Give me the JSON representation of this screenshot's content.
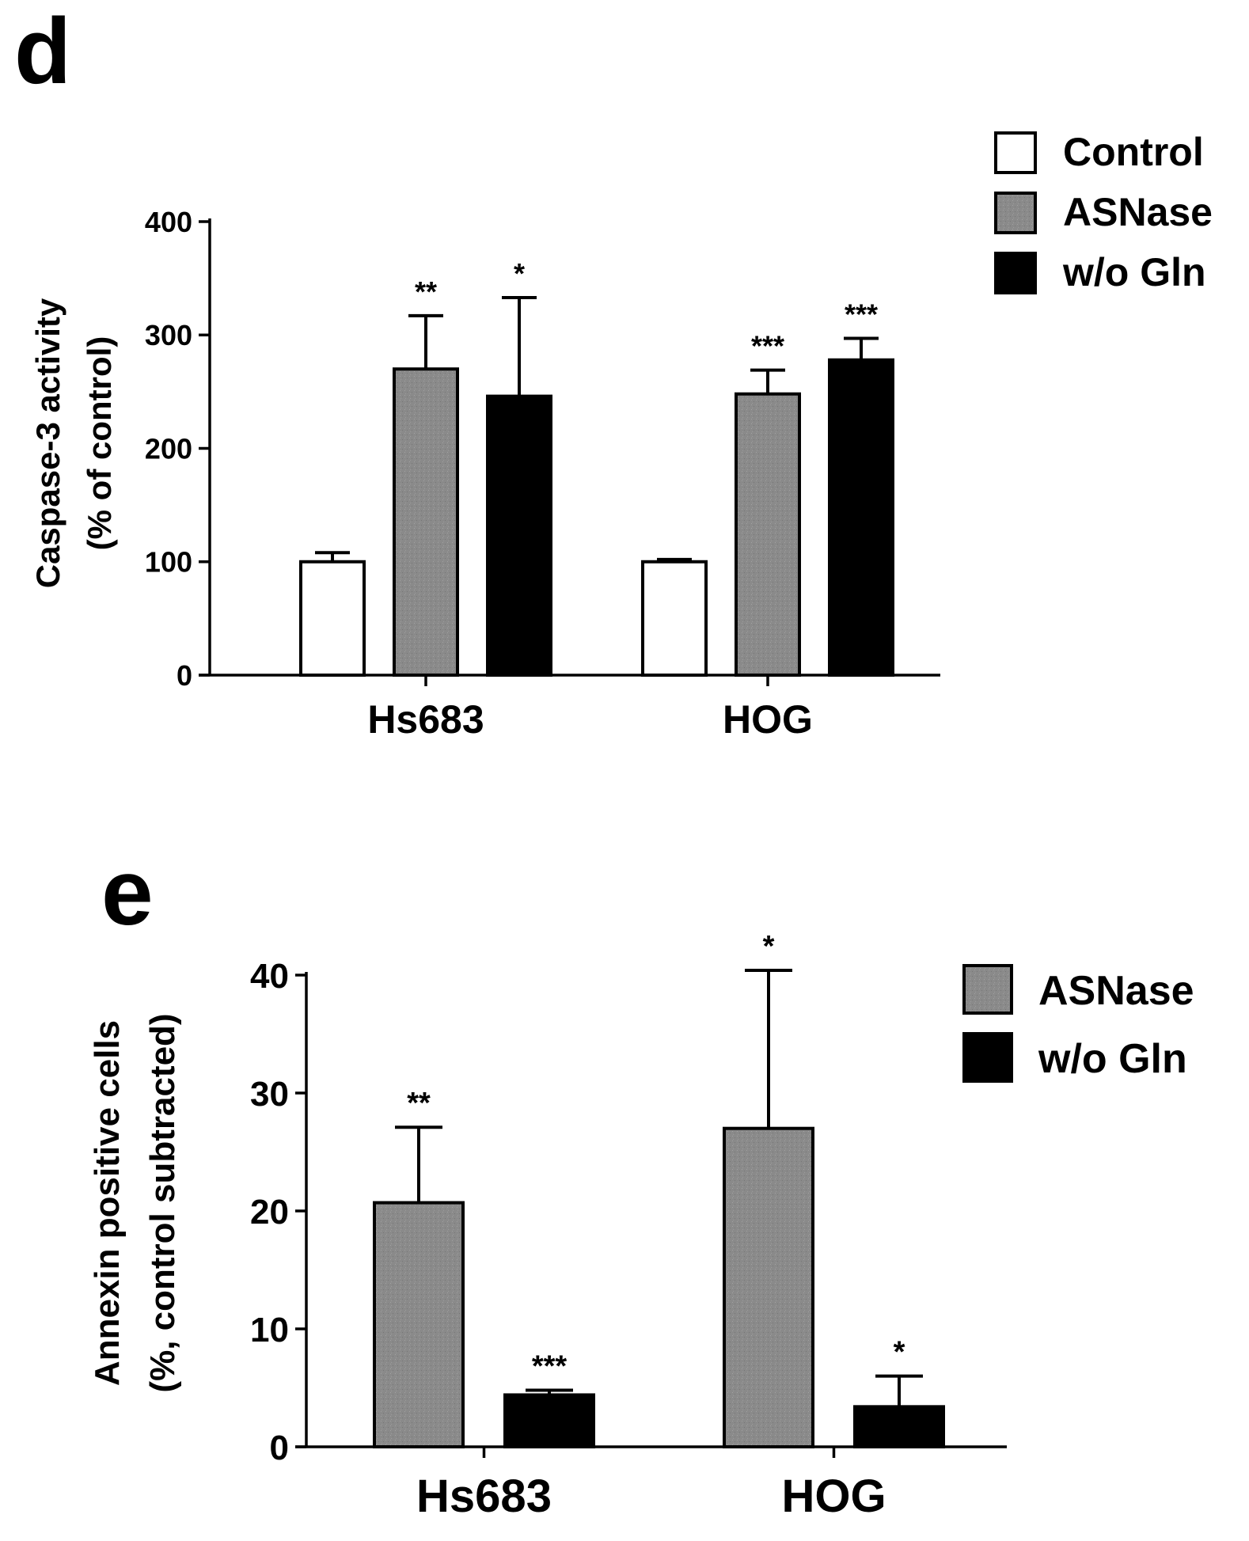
{
  "colors": {
    "control": "#ffffff",
    "asnase": "#8a8a8a",
    "wo_gln": "#000000",
    "axis": "#000000"
  },
  "chart_data": [
    {
      "panel_label": "d",
      "type": "bar",
      "categories": [
        "Hs683",
        "HOG"
      ],
      "ylabel_line1": "Caspase-3 activity",
      "ylabel_line2": "(% of control)",
      "ylim": [
        0,
        400
      ],
      "yticks": [
        0,
        100,
        200,
        300,
        400
      ],
      "legend_position": "top-right",
      "series": [
        {
          "name": "Control",
          "color_key": "control",
          "values": [
            100,
            100
          ],
          "errors": [
            8,
            2
          ],
          "significance": [
            "",
            ""
          ]
        },
        {
          "name": "ASNase",
          "color_key": "asnase",
          "values": [
            270,
            248
          ],
          "errors": [
            47,
            21
          ],
          "significance": [
            "**",
            "***"
          ]
        },
        {
          "name": "w/o Gln",
          "color_key": "wo_gln",
          "values": [
            246,
            278
          ],
          "errors": [
            87,
            19
          ],
          "significance": [
            "*",
            "***"
          ]
        }
      ]
    },
    {
      "panel_label": "e",
      "type": "bar",
      "categories": [
        "Hs683",
        "HOG"
      ],
      "ylabel_line1": "Annexin positive cells",
      "ylabel_line2": "(%, control subtracted)",
      "ylim": [
        0,
        40
      ],
      "yticks": [
        0,
        10,
        20,
        30,
        40
      ],
      "legend_position": "top-right",
      "series": [
        {
          "name": "ASNase",
          "color_key": "asnase",
          "values": [
            20.7,
            27.0
          ],
          "errors": [
            6.4,
            13.4
          ],
          "significance": [
            "**",
            "*"
          ]
        },
        {
          "name": "w/o Gln",
          "color_key": "wo_gln",
          "values": [
            4.4,
            3.4
          ],
          "errors": [
            0.4,
            2.6
          ],
          "significance": [
            "***",
            "*"
          ]
        }
      ]
    }
  ]
}
